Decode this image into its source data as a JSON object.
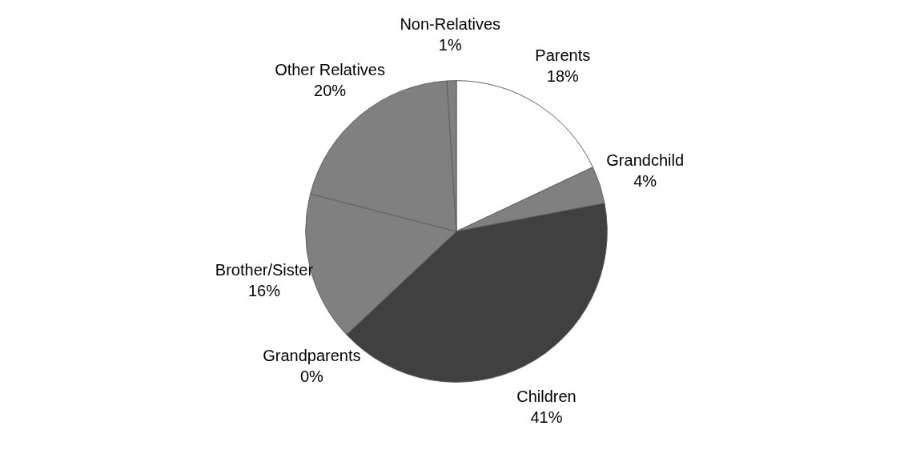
{
  "chart_data": {
    "type": "pie",
    "categories": [
      "Parents",
      "Grandchild",
      "Children",
      "Grandparents",
      "Brother/Sister",
      "Other Relatives",
      "Non-Relatives"
    ],
    "values": [
      18,
      4,
      41,
      0,
      16,
      20,
      1
    ],
    "colors": [
      "#ffffff",
      "#808080",
      "#404040",
      "#a0a0a0",
      "#808080",
      "#808080",
      "#808080"
    ],
    "value_labels": [
      "18%",
      "4%",
      "41%",
      "0%",
      "16%",
      "20%",
      "1%"
    ]
  }
}
